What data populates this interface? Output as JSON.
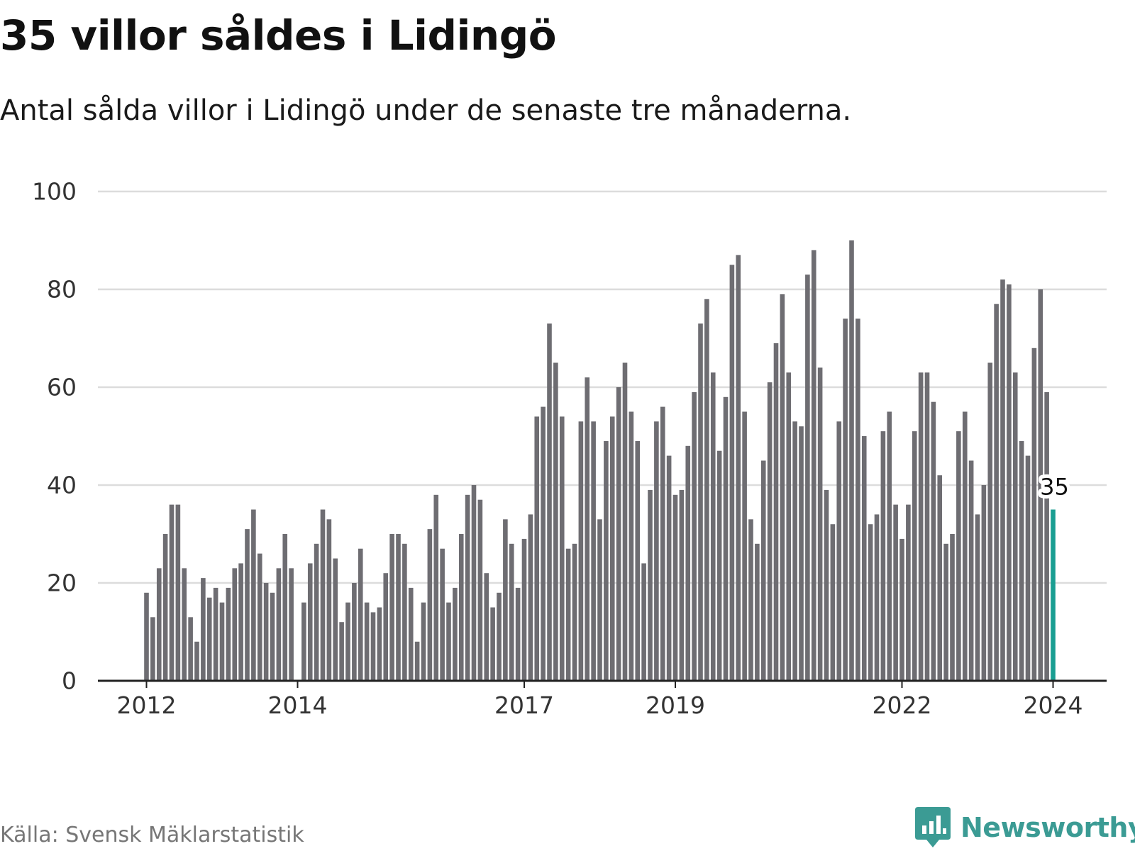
{
  "title": "35 villor såldes i Lidingö",
  "subtitle": "Antal sålda villor i Lidingö under de senaste tre månaderna.",
  "source": "Källa: Svensk Mäklarstatistik",
  "logo_text": "Newsworthy",
  "colors": {
    "bar": "#6e6d72",
    "highlight": "#1a9e92",
    "grid": "#dcdcdc",
    "axis": "#222222",
    "brand": "#3b9b94"
  },
  "chart_data": {
    "type": "bar",
    "ylim": [
      0,
      100
    ],
    "yticks": [
      0,
      20,
      40,
      60,
      80,
      100
    ],
    "x_tick_labels": [
      {
        "label": "2012",
        "index": 0
      },
      {
        "label": "2014",
        "index": 24
      },
      {
        "label": "2017",
        "index": 60
      },
      {
        "label": "2019",
        "index": 84
      },
      {
        "label": "2022",
        "index": 120
      },
      {
        "label": "2024",
        "index": 144
      }
    ],
    "start": "2012-01",
    "values": [
      18,
      13,
      23,
      30,
      36,
      36,
      23,
      13,
      8,
      21,
      17,
      19,
      16,
      19,
      23,
      24,
      31,
      35,
      26,
      20,
      18,
      23,
      30,
      23,
      0,
      16,
      24,
      28,
      35,
      33,
      25,
      12,
      16,
      20,
      27,
      16,
      14,
      15,
      22,
      30,
      30,
      28,
      19,
      8,
      16,
      31,
      38,
      27,
      16,
      19,
      30,
      38,
      40,
      37,
      22,
      15,
      18,
      33,
      28,
      19,
      29,
      34,
      54,
      56,
      73,
      65,
      54,
      27,
      28,
      53,
      62,
      53,
      33,
      49,
      54,
      60,
      65,
      55,
      49,
      24,
      39,
      53,
      56,
      46,
      38,
      39,
      48,
      59,
      73,
      78,
      63,
      47,
      58,
      85,
      87,
      55,
      33,
      28,
      45,
      61,
      69,
      79,
      63,
      53,
      52,
      83,
      88,
      64,
      39,
      32,
      53,
      74,
      90,
      74,
      50,
      32,
      34,
      51,
      55,
      36,
      29,
      36,
      51,
      63,
      63,
      57,
      42,
      28,
      30,
      51,
      55,
      45,
      34,
      40,
      65,
      77,
      82,
      81,
      63,
      49,
      46,
      68,
      80,
      59,
      35
    ],
    "highlight_index": 144,
    "highlight_label": "35"
  }
}
